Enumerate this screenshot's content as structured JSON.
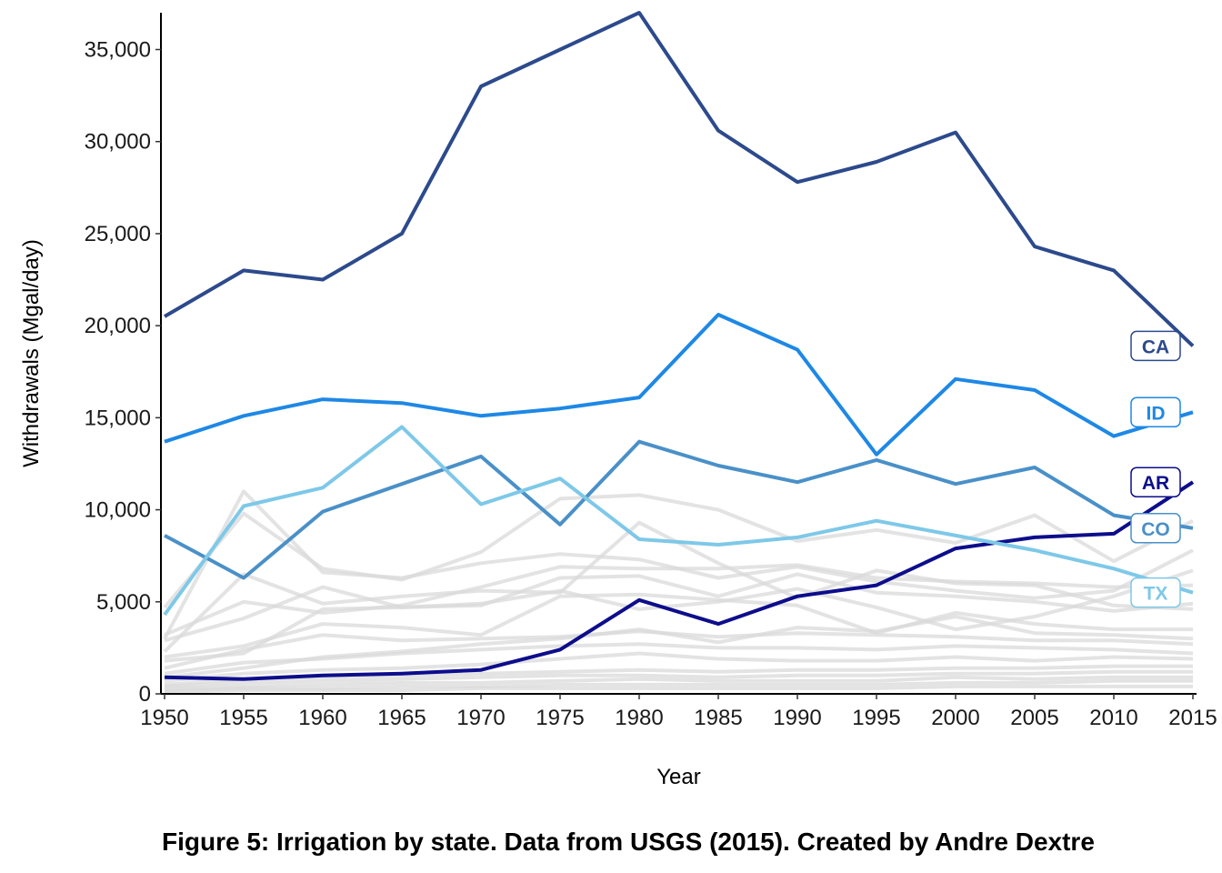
{
  "caption": "Figure 5: Irrigation by state. Data from USGS (2015). Created by Andre Dextre",
  "chart_data": {
    "type": "line",
    "title": "",
    "xlabel": "Year",
    "ylabel": "Withdrawals (Mgal/day)",
    "x": [
      1950,
      1955,
      1960,
      1965,
      1970,
      1975,
      1980,
      1985,
      1990,
      1995,
      2000,
      2005,
      2010,
      2015
    ],
    "xlim": [
      1950,
      2015
    ],
    "ylim": [
      0,
      37000
    ],
    "x_ticks": [
      "1950",
      "1955",
      "1960",
      "1965",
      "1970",
      "1975",
      "1980",
      "1985",
      "1990",
      "1995",
      "2000",
      "2005",
      "2010",
      "2015"
    ],
    "y_ticks": [
      {
        "value": 0,
        "label": "0"
      },
      {
        "value": 5000,
        "label": "5,000"
      },
      {
        "value": 10000,
        "label": "10,000"
      },
      {
        "value": 15000,
        "label": "15,000"
      },
      {
        "value": 20000,
        "label": "20,000"
      },
      {
        "value": 25000,
        "label": "25,000"
      },
      {
        "value": 30000,
        "label": "30,000"
      },
      {
        "value": 35000,
        "label": "35,000"
      }
    ],
    "grid": false,
    "background_series_color": "#d9d9d9",
    "series": [
      {
        "name": "CA",
        "color": "#2c4a8c",
        "values": [
          20500,
          23000,
          22500,
          25000,
          33000,
          35000,
          37000,
          30600,
          27800,
          28900,
          30500,
          24300,
          23000,
          18900
        ]
      },
      {
        "name": "ID",
        "color": "#1e88e5",
        "values": [
          13700,
          15100,
          16000,
          15800,
          15100,
          15500,
          16100,
          20600,
          18700,
          13000,
          17100,
          16500,
          14000,
          15300
        ]
      },
      {
        "name": "AR",
        "color": "#0d0d8c",
        "values": [
          900,
          800,
          1000,
          1100,
          1300,
          2400,
          5100,
          3800,
          5300,
          5900,
          7900,
          8500,
          8700,
          11500
        ]
      },
      {
        "name": "CO",
        "color": "#4a90c8",
        "values": [
          8600,
          6300,
          9900,
          11400,
          12900,
          9200,
          13700,
          12400,
          11500,
          12700,
          11400,
          12300,
          9700,
          9000
        ]
      },
      {
        "name": "TX",
        "color": "#7ec8e8",
        "values": [
          4300,
          10200,
          11200,
          14500,
          10300,
          11700,
          8400,
          8100,
          8500,
          9400,
          8600,
          7800,
          6800,
          5500
        ]
      }
    ],
    "background_series": [
      [
        3000,
        11000,
        6600,
        6300,
        7100,
        7600,
        7300,
        6300,
        6900,
        6100,
        5600,
        5200,
        5600,
        7800
      ],
      [
        4700,
        9800,
        6800,
        6200,
        7700,
        10600,
        10800,
        10000,
        8300,
        8900,
        8200,
        9700,
        7200,
        9400
      ],
      [
        2300,
        6500,
        4900,
        5300,
        5600,
        5500,
        9300,
        7100,
        5200,
        6700,
        6000,
        5900,
        4800,
        4600
      ],
      [
        3200,
        5000,
        4400,
        4800,
        5800,
        6900,
        6800,
        6800,
        7000,
        6300,
        6100,
        6000,
        5800,
        5900
      ],
      [
        2900,
        4100,
        5800,
        4700,
        4800,
        6300,
        6400,
        5300,
        6500,
        5500,
        5300,
        5000,
        4500,
        4900
      ],
      [
        2000,
        2600,
        3800,
        3600,
        3200,
        5300,
        5400,
        5100,
        4800,
        3300,
        4400,
        3800,
        3500,
        3500
      ],
      [
        1800,
        2200,
        4600,
        4700,
        4900,
        5600,
        4600,
        5000,
        5700,
        4700,
        3500,
        4200,
        5300,
        6700
      ],
      [
        1400,
        2400,
        3200,
        2900,
        3000,
        3100,
        3400,
        3100,
        3300,
        3200,
        3100,
        2900,
        2900,
        2700
      ],
      [
        1100,
        1700,
        1900,
        2200,
        2400,
        2600,
        2700,
        2500,
        2500,
        2400,
        2600,
        2500,
        2400,
        2200
      ],
      [
        900,
        1400,
        2000,
        2300,
        2700,
        3000,
        3500,
        2800,
        3600,
        3400,
        4200,
        3300,
        3200,
        3000
      ],
      [
        700,
        1100,
        1300,
        1400,
        1600,
        1900,
        2200,
        1900,
        1800,
        1800,
        2000,
        1800,
        2000,
        1900
      ],
      [
        500,
        800,
        900,
        1000,
        1100,
        1200,
        1300,
        1200,
        1300,
        1300,
        1400,
        1400,
        1500,
        1500
      ],
      [
        400,
        600,
        700,
        800,
        900,
        1000,
        1000,
        900,
        1000,
        1000,
        1100,
        1100,
        1200,
        1200
      ],
      [
        300,
        400,
        500,
        600,
        600,
        700,
        800,
        700,
        700,
        700,
        900,
        800,
        900,
        900
      ],
      [
        200,
        300,
        300,
        400,
        400,
        500,
        500,
        500,
        500,
        500,
        600,
        600,
        700,
        700
      ],
      [
        100,
        200,
        200,
        200,
        300,
        300,
        300,
        300,
        300,
        300,
        400,
        400,
        400,
        400
      ]
    ]
  }
}
